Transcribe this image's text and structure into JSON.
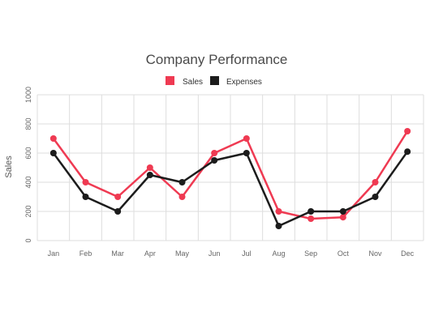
{
  "chart_data": {
    "type": "line",
    "title": "Company Performance",
    "xlabel": "",
    "ylabel": "Sales",
    "categories": [
      "Jan",
      "Feb",
      "Mar",
      "Apr",
      "May",
      "Jun",
      "Jul",
      "Aug",
      "Sep",
      "Oct",
      "Nov",
      "Dec"
    ],
    "ylim": [
      0,
      1000
    ],
    "yticks": [
      "0",
      "200",
      "400",
      "600",
      "800",
      "1000"
    ],
    "grid": true,
    "legend_position": "top-center",
    "series": [
      {
        "name": "Sales",
        "color": "#ef3a52",
        "values": [
          700,
          400,
          300,
          500,
          300,
          600,
          700,
          200,
          150,
          160,
          400,
          750
        ]
      },
      {
        "name": "Expenses",
        "color": "#1c1c1c",
        "values": [
          600,
          300,
          200,
          450,
          400,
          550,
          600,
          100,
          200,
          200,
          300,
          610
        ]
      }
    ]
  }
}
